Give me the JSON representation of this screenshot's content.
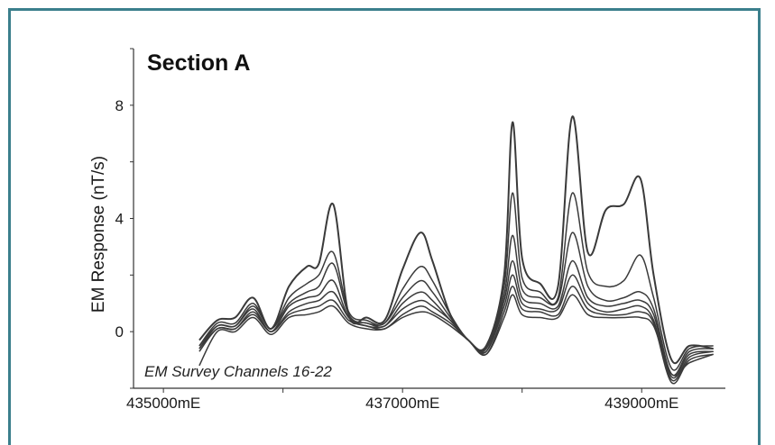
{
  "chart_data": {
    "type": "line",
    "title": "Section A",
    "annotation": "EM Survey Channels 16-22",
    "ylabel": "EM Response (nT/s)",
    "xlabel": "",
    "xlim": [
      434750,
      439700
    ],
    "ylim": [
      -2,
      10
    ],
    "x_ticks": [
      435000,
      437000,
      439000
    ],
    "x_tick_labels": [
      "435000mE",
      "437000mE",
      "439000mE"
    ],
    "y_ticks": [
      0,
      4,
      8
    ],
    "y_tick_labels": [
      "0",
      "4",
      "8"
    ],
    "grid": false,
    "line_color": "#3a3a3a",
    "x": [
      435300,
      435450,
      435600,
      435750,
      435900,
      436050,
      436200,
      436300,
      436420,
      436550,
      436700,
      436850,
      437000,
      437150,
      437250,
      437400,
      437550,
      437700,
      437850,
      437920,
      438000,
      438150,
      438300,
      438420,
      438550,
      438700,
      438850,
      438990,
      439100,
      439250,
      439400,
      439600
    ],
    "series": [
      {
        "values": [
          -0.3,
          0.4,
          0.5,
          1.2,
          0.1,
          1.6,
          2.3,
          2.4,
          4.5,
          0.6,
          0.5,
          0.4,
          2.2,
          3.5,
          2.5,
          0.6,
          -0.3,
          -0.5,
          2.0,
          7.4,
          2.6,
          1.7,
          1.6,
          7.6,
          2.8,
          4.3,
          4.5,
          5.4,
          2.0,
          -1.0,
          -0.5,
          -0.6
        ]
      },
      {
        "values": [
          -0.5,
          0.3,
          0.3,
          1.0,
          0.1,
          1.2,
          1.7,
          2.0,
          2.8,
          0.7,
          0.4,
          0.3,
          1.5,
          2.3,
          1.8,
          0.6,
          -0.3,
          -0.6,
          1.6,
          4.9,
          1.9,
          1.4,
          1.2,
          4.9,
          2.1,
          1.6,
          1.8,
          2.7,
          1.2,
          -1.3,
          -0.6,
          -0.5
        ]
      },
      {
        "values": [
          -0.5,
          0.2,
          0.2,
          0.9,
          0.1,
          1.0,
          1.4,
          1.6,
          2.4,
          0.6,
          0.3,
          0.3,
          1.2,
          1.8,
          1.4,
          0.5,
          -0.3,
          -0.6,
          1.3,
          3.4,
          1.5,
          1.2,
          1.1,
          3.5,
          1.6,
          1.1,
          1.2,
          1.4,
          0.8,
          -1.5,
          -0.7,
          -0.6
        ]
      },
      {
        "values": [
          -0.6,
          0.2,
          0.2,
          0.8,
          0.0,
          0.9,
          1.2,
          1.3,
          1.8,
          0.5,
          0.3,
          0.2,
          1.0,
          1.4,
          1.1,
          0.4,
          -0.3,
          -0.7,
          1.1,
          2.5,
          1.2,
          1.0,
          0.9,
          2.5,
          1.2,
          0.9,
          1.0,
          1.1,
          0.6,
          -1.6,
          -0.8,
          -0.7
        ]
      },
      {
        "values": [
          -0.6,
          0.1,
          0.1,
          0.7,
          0.0,
          0.7,
          1.0,
          1.1,
          1.4,
          0.5,
          0.2,
          0.2,
          0.8,
          1.1,
          0.9,
          0.4,
          -0.3,
          -0.7,
          0.9,
          2.0,
          1.0,
          0.8,
          0.8,
          2.0,
          1.0,
          0.7,
          0.8,
          0.9,
          0.4,
          -1.7,
          -0.9,
          -0.7
        ]
      },
      {
        "values": [
          -0.7,
          0.1,
          0.1,
          0.6,
          0.0,
          0.6,
          0.8,
          0.9,
          1.1,
          0.4,
          0.2,
          0.1,
          0.6,
          0.9,
          0.7,
          0.3,
          -0.3,
          -0.8,
          0.7,
          1.6,
          0.8,
          0.7,
          0.6,
          1.6,
          0.8,
          0.6,
          0.6,
          0.7,
          0.3,
          -1.8,
          -1.0,
          -0.8
        ]
      },
      {
        "values": [
          -1.2,
          0.0,
          0.0,
          0.5,
          -0.1,
          0.5,
          0.6,
          0.7,
          0.9,
          0.3,
          0.1,
          0.1,
          0.5,
          0.7,
          0.6,
          0.2,
          -0.3,
          -0.8,
          0.5,
          1.3,
          0.6,
          0.5,
          0.5,
          1.3,
          0.6,
          0.5,
          0.5,
          0.5,
          0.2,
          -1.5,
          -1.1,
          -0.8
        ]
      }
    ]
  }
}
